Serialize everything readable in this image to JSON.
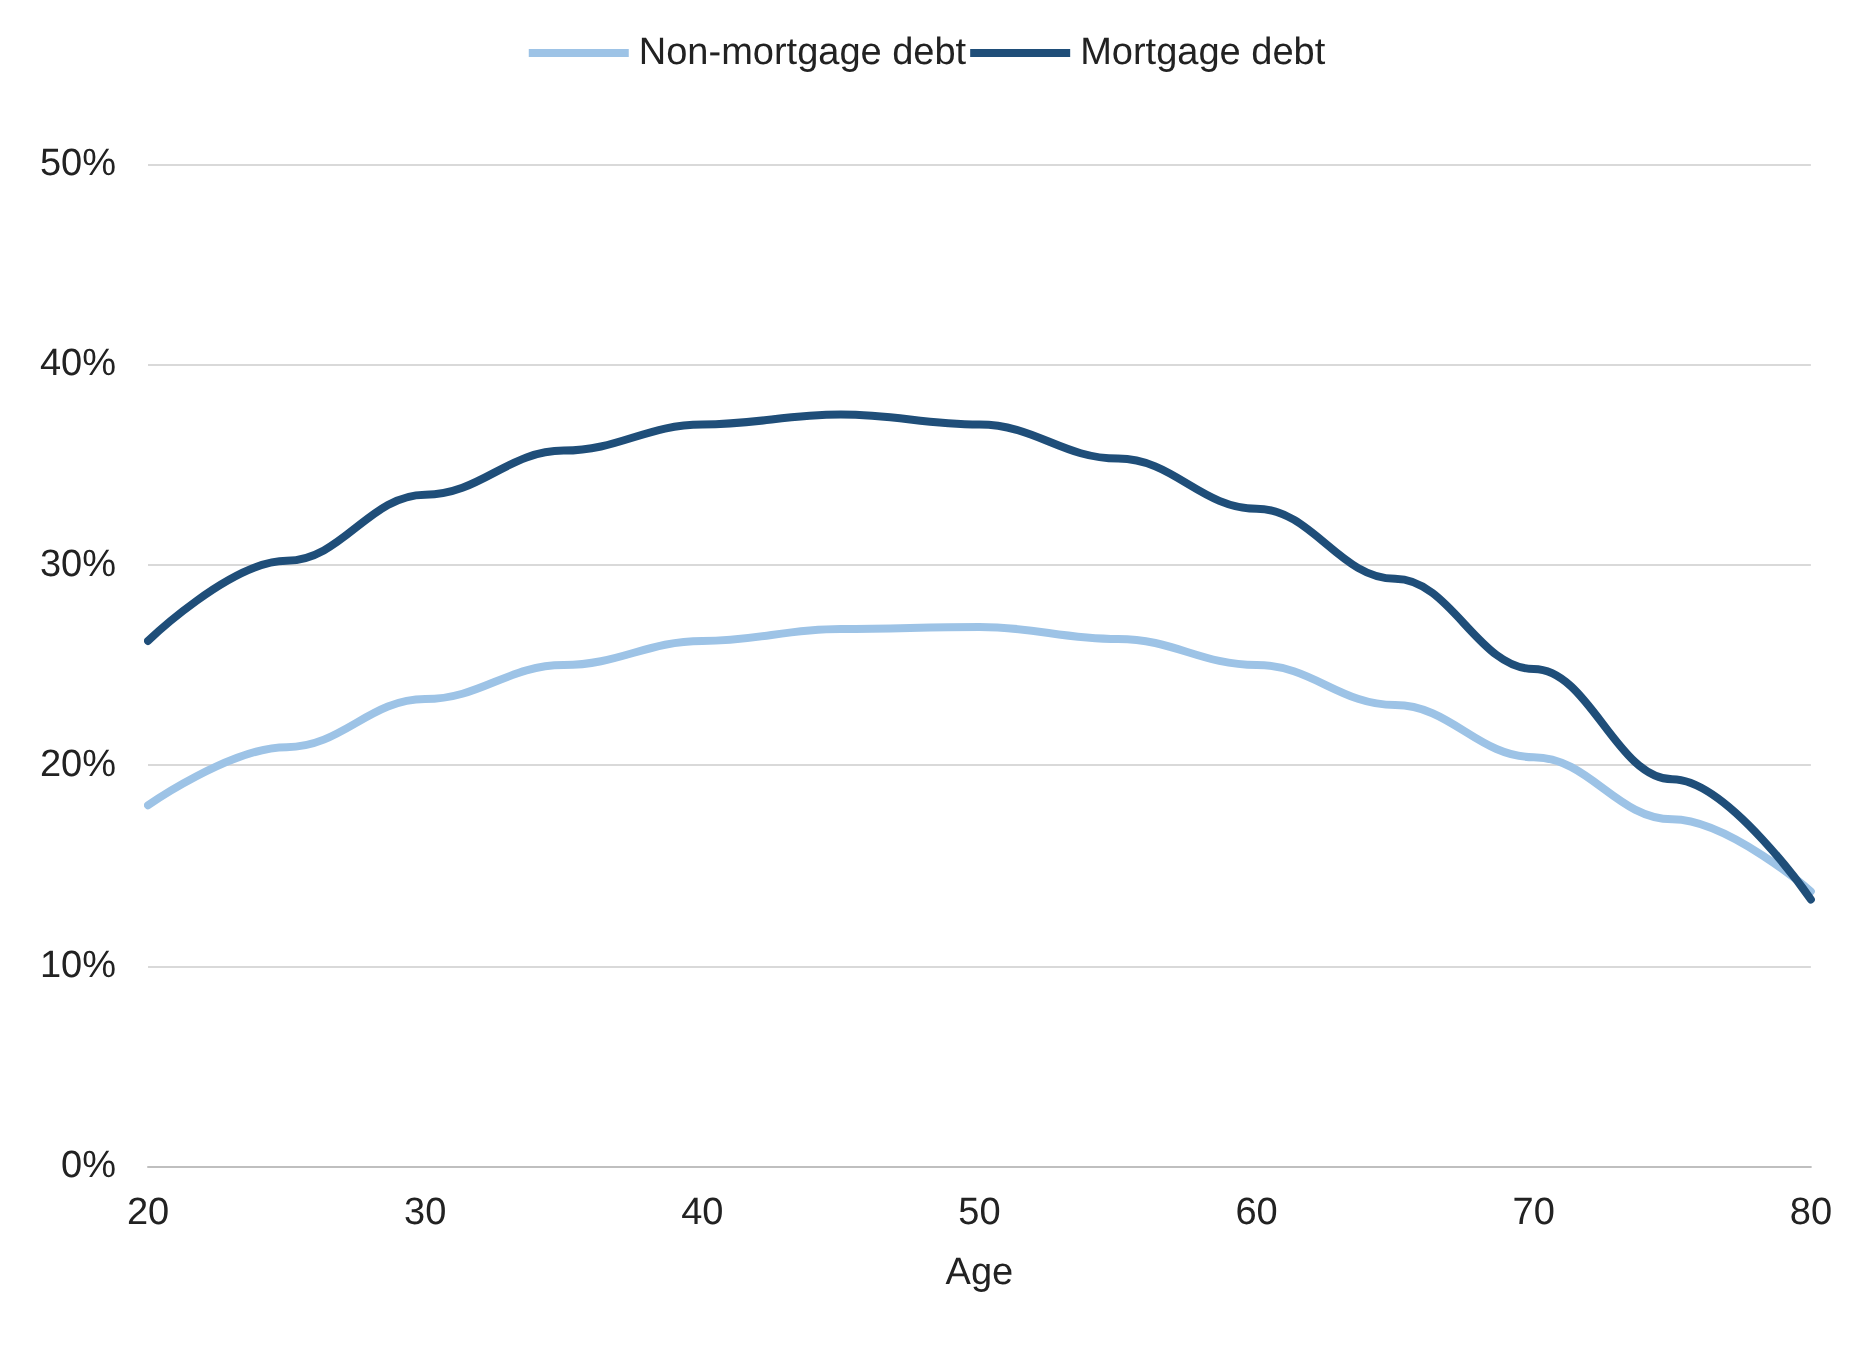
{
  "chart_data": {
    "type": "line",
    "xlabel": "Age",
    "x": [
      20,
      25,
      30,
      35,
      40,
      45,
      50,
      55,
      60,
      65,
      70,
      75,
      80
    ],
    "series": [
      {
        "name": "Non-mortgage debt",
        "color": "#9dc3e6",
        "values": [
          18.0,
          20.9,
          23.3,
          25.0,
          26.2,
          26.8,
          26.9,
          26.3,
          25.0,
          23.0,
          20.4,
          17.3,
          13.7
        ]
      },
      {
        "name": "Mortgage debt",
        "color": "#1f4e79",
        "values": [
          26.2,
          30.2,
          33.5,
          35.7,
          37.0,
          37.5,
          37.0,
          35.3,
          32.8,
          29.3,
          24.8,
          19.3,
          13.3
        ]
      }
    ],
    "xlim": [
      20,
      80
    ],
    "xticks": [
      20,
      30,
      40,
      50,
      60,
      70,
      80
    ],
    "ylim": [
      0,
      50
    ],
    "yticks": [
      {
        "value": 0,
        "label": "0%"
      },
      {
        "value": 10,
        "label": "10%"
      },
      {
        "value": 20,
        "label": "20%"
      },
      {
        "value": 30,
        "label": "30%"
      },
      {
        "value": 40,
        "label": "40%"
      },
      {
        "value": 50,
        "label": "50%"
      }
    ],
    "grid": "y",
    "legend": "top",
    "marker": "none",
    "line_style": "solid"
  }
}
